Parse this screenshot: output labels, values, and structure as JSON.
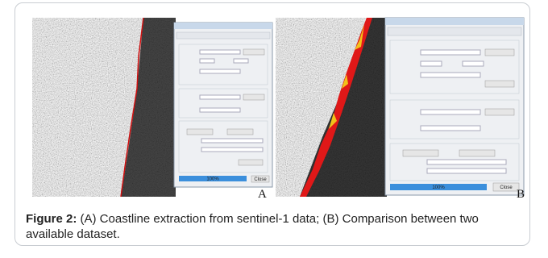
{
  "figure": {
    "panels": [
      {
        "label": "A",
        "progress": "100%",
        "button": "Close"
      },
      {
        "label": "B",
        "progress": "100%",
        "button": "Close"
      }
    ],
    "caption": {
      "label": "Figure 2:",
      "text": " (A) Coastline extraction from sentinel-1 data; (B) Comparison between two available dataset."
    }
  }
}
